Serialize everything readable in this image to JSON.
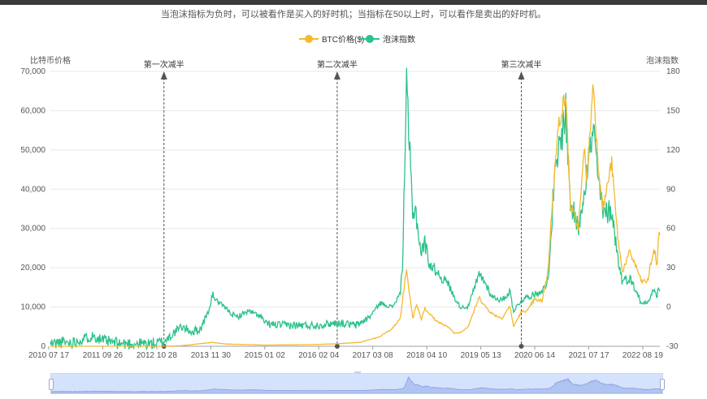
{
  "subtitle": "当泡沫指标为负时，可以被看作是买入的好时机；当指标在50以上时，可以看作是卖出的好时机。",
  "legend": [
    {
      "name": "BTC价格($)",
      "color": "#F5B92E"
    },
    {
      "name": "泡沫指数",
      "color": "#2DC28A"
    }
  ],
  "chart_data": {
    "type": "line",
    "title": "",
    "x_axis": {
      "type": "date",
      "range": [
        "2010-07-17",
        "2023-04-01"
      ],
      "ticks": [
        "2010 07 17",
        "2011 09 26",
        "2012 10 28",
        "2013 11 30",
        "2015 01 02",
        "2016 02 04",
        "2017 03 08",
        "2018 04 10",
        "2019 05 13",
        "2020 06 14",
        "2021 07 17",
        "2022 08 19"
      ]
    },
    "y_axis_left": {
      "name": "比特币价格",
      "range": [
        0,
        70000
      ],
      "ticks": [
        "0",
        "10,000",
        "20,000",
        "30,000",
        "40,000",
        "50,000",
        "60,000",
        "70,000"
      ]
    },
    "y_axis_right": {
      "name": "泡沫指数",
      "range": [
        -30,
        180
      ],
      "ticks": [
        "-30",
        "0",
        "30",
        "60",
        "90",
        "120",
        "150",
        "180"
      ]
    },
    "grid": true,
    "legend_position": "top",
    "markers": [
      {
        "label": "第一次减半",
        "date": "2012-11-28"
      },
      {
        "label": "第二次减半",
        "date": "2016-07-09"
      },
      {
        "label": "第三次减半",
        "date": "2020-05-11"
      }
    ],
    "series": [
      {
        "name": "BTC价格($)",
        "axis": "left",
        "color": "#F5B92E",
        "points": [
          [
            "2010-07-17",
            0
          ],
          [
            "2011-06-01",
            15
          ],
          [
            "2012-06-01",
            10
          ],
          [
            "2012-11-28",
            12
          ],
          [
            "2013-04-10",
            150
          ],
          [
            "2013-11-30",
            1000
          ],
          [
            "2014-03-01",
            600
          ],
          [
            "2015-01-02",
            300
          ],
          [
            "2016-01-01",
            430
          ],
          [
            "2016-07-09",
            650
          ],
          [
            "2017-01-01",
            1000
          ],
          [
            "2017-06-01",
            2500
          ],
          [
            "2017-09-01",
            4500
          ],
          [
            "2017-11-01",
            7000
          ],
          [
            "2017-12-17",
            19500
          ],
          [
            "2018-02-06",
            7000
          ],
          [
            "2018-03-05",
            11000
          ],
          [
            "2018-04-10",
            6800
          ],
          [
            "2018-05-05",
            9700
          ],
          [
            "2018-08-01",
            6500
          ],
          [
            "2018-11-20",
            4500
          ],
          [
            "2018-12-15",
            3300
          ],
          [
            "2019-02-01",
            3500
          ],
          [
            "2019-04-01",
            5000
          ],
          [
            "2019-06-26",
            12500
          ],
          [
            "2019-08-01",
            10500
          ],
          [
            "2019-10-01",
            8300
          ],
          [
            "2019-12-15",
            7100
          ],
          [
            "2020-02-15",
            10300
          ],
          [
            "2020-03-12",
            5000
          ],
          [
            "2020-05-11",
            8700
          ],
          [
            "2020-07-01",
            9200
          ],
          [
            "2020-08-15",
            11800
          ],
          [
            "2020-10-15",
            11500
          ],
          [
            "2020-11-30",
            19000
          ],
          [
            "2021-01-08",
            40000
          ],
          [
            "2021-02-21",
            57000
          ],
          [
            "2021-04-14",
            64000
          ],
          [
            "2021-05-19",
            36000
          ],
          [
            "2021-07-20",
            30000
          ],
          [
            "2021-09-07",
            52000
          ],
          [
            "2021-09-21",
            41000
          ],
          [
            "2021-11-10",
            67500
          ],
          [
            "2021-12-15",
            47000
          ],
          [
            "2022-01-24",
            35000
          ],
          [
            "2022-03-30",
            47000
          ],
          [
            "2022-05-12",
            29000
          ],
          [
            "2022-06-18",
            19000
          ],
          [
            "2022-08-15",
            24000
          ],
          [
            "2022-10-15",
            19200
          ],
          [
            "2022-11-10",
            16500
          ],
          [
            "2022-12-31",
            16600
          ],
          [
            "2023-01-20",
            21000
          ],
          [
            "2023-02-20",
            24500
          ],
          [
            "2023-03-10",
            20000
          ],
          [
            "2023-03-20",
            28000
          ],
          [
            "2023-04-01",
            28500
          ]
        ]
      },
      {
        "name": "泡沫指数",
        "axis": "right",
        "color": "#2DC28A",
        "points": [
          [
            "2010-07-17",
            -28
          ],
          [
            "2010-10-01",
            -27
          ],
          [
            "2011-01-01",
            -27
          ],
          [
            "2011-06-10",
            -22
          ],
          [
            "2011-09-01",
            -26
          ],
          [
            "2012-01-01",
            -28
          ],
          [
            "2012-06-01",
            -28
          ],
          [
            "2012-10-01",
            -28
          ],
          [
            "2012-12-01",
            -26
          ],
          [
            "2013-04-10",
            -15
          ],
          [
            "2013-07-01",
            -19
          ],
          [
            "2013-09-01",
            -17
          ],
          [
            "2013-11-15",
            0
          ],
          [
            "2013-12-01",
            10
          ],
          [
            "2014-01-01",
            5
          ],
          [
            "2014-03-01",
            0
          ],
          [
            "2014-06-01",
            -8
          ],
          [
            "2014-09-01",
            -3
          ],
          [
            "2014-12-01",
            -7
          ],
          [
            "2015-01-15",
            -13
          ],
          [
            "2015-06-01",
            -14
          ],
          [
            "2015-12-01",
            -14
          ],
          [
            "2016-02-04",
            -14
          ],
          [
            "2016-07-09",
            -12
          ],
          [
            "2016-12-01",
            -14
          ],
          [
            "2017-03-08",
            -8
          ],
          [
            "2017-06-01",
            3
          ],
          [
            "2017-09-01",
            0
          ],
          [
            "2017-11-01",
            10
          ],
          [
            "2017-11-20",
            35
          ],
          [
            "2017-12-17",
            168
          ],
          [
            "2018-01-01",
            140
          ],
          [
            "2018-02-06",
            65
          ],
          [
            "2018-02-20",
            80
          ],
          [
            "2018-03-15",
            60
          ],
          [
            "2018-04-10",
            40
          ],
          [
            "2018-05-05",
            50
          ],
          [
            "2018-06-15",
            32
          ],
          [
            "2018-08-01",
            28
          ],
          [
            "2018-09-15",
            22
          ],
          [
            "2018-11-01",
            18
          ],
          [
            "2018-12-15",
            8
          ],
          [
            "2019-02-01",
            0
          ],
          [
            "2019-04-01",
            0
          ],
          [
            "2019-06-26",
            25
          ],
          [
            "2019-08-01",
            20
          ],
          [
            "2019-10-01",
            8
          ],
          [
            "2019-12-15",
            5
          ],
          [
            "2020-02-15",
            12
          ],
          [
            "2020-03-12",
            -3
          ],
          [
            "2020-05-11",
            5
          ],
          [
            "2020-07-01",
            8
          ],
          [
            "2020-09-01",
            10
          ],
          [
            "2020-11-15",
            15
          ],
          [
            "2020-12-15",
            35
          ],
          [
            "2021-01-08",
            85
          ],
          [
            "2021-02-21",
            120
          ],
          [
            "2021-04-14",
            150
          ],
          [
            "2021-05-19",
            80
          ],
          [
            "2021-07-20",
            60
          ],
          [
            "2021-09-07",
            95
          ],
          [
            "2021-11-10",
            135
          ],
          [
            "2021-12-15",
            100
          ],
          [
            "2022-01-24",
            70
          ],
          [
            "2022-03-30",
            75
          ],
          [
            "2022-05-12",
            40
          ],
          [
            "2022-06-18",
            20
          ],
          [
            "2022-08-15",
            22
          ],
          [
            "2022-10-15",
            10
          ],
          [
            "2022-11-10",
            2
          ],
          [
            "2022-12-31",
            5
          ],
          [
            "2023-01-20",
            8
          ],
          [
            "2023-02-20",
            15
          ],
          [
            "2023-03-10",
            5
          ],
          [
            "2023-03-20",
            15
          ],
          [
            "2023-04-01",
            12
          ]
        ]
      }
    ]
  }
}
